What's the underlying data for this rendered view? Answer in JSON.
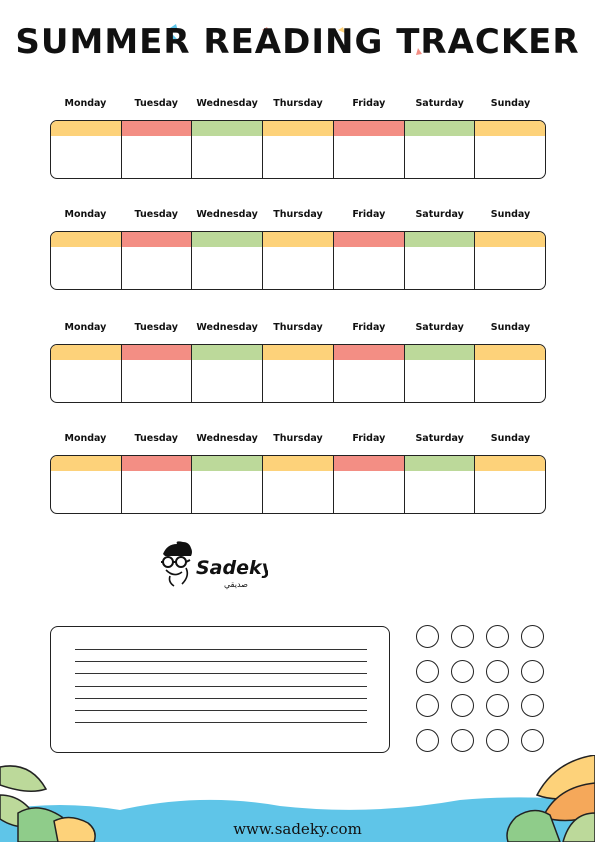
{
  "title": "SUMMER READING TRACKER",
  "days": [
    "Monday",
    "Tuesday",
    "Wednesday",
    "Thursday",
    "Friday",
    "Saturday",
    "Sunday"
  ],
  "header_colors": [
    "#fdd27a",
    "#f38e84",
    "#bcd99a",
    "#fdd27a",
    "#f38e84",
    "#bcd99a",
    "#fdd27a"
  ],
  "weeks": 4,
  "logo": {
    "text": "Sadeky",
    "subtext": "صديقي"
  },
  "notes": {
    "line_count": 7
  },
  "circles": {
    "count": 16
  },
  "footer": {
    "website": "www.sadeky.com",
    "water_color": "#5fc5e8"
  }
}
